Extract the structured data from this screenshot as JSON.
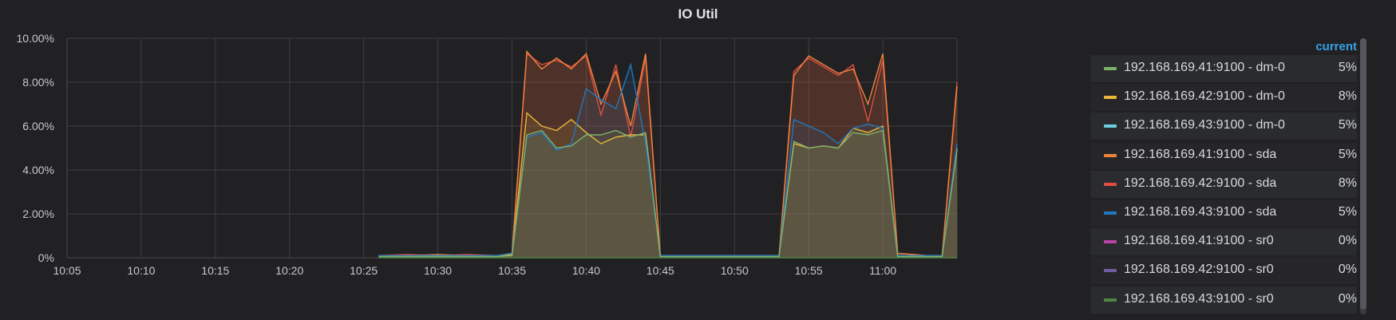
{
  "panel": {
    "title": "IO Util"
  },
  "legend": {
    "header": "current",
    "items": [
      {
        "name": "192.168.169.41:9100 - dm-0",
        "value": "5%",
        "color": "#7eb26d"
      },
      {
        "name": "192.168.169.42:9100 - dm-0",
        "value": "8%",
        "color": "#eab839"
      },
      {
        "name": "192.168.169.43:9100 - dm-0",
        "value": "5%",
        "color": "#6ed0e0"
      },
      {
        "name": "192.168.169.41:9100 - sda",
        "value": "5%",
        "color": "#ef843c"
      },
      {
        "name": "192.168.169.42:9100 - sda",
        "value": "8%",
        "color": "#e24d42"
      },
      {
        "name": "192.168.169.43:9100 - sda",
        "value": "5%",
        "color": "#1f78c1"
      },
      {
        "name": "192.168.169.41:9100 - sr0",
        "value": "0%",
        "color": "#ba43a9"
      },
      {
        "name": "192.168.169.42:9100 - sr0",
        "value": "0%",
        "color": "#705da0"
      },
      {
        "name": "192.168.169.43:9100 - sr0",
        "value": "0%",
        "color": "#508642"
      }
    ]
  },
  "chart_data": {
    "type": "area",
    "title": "IO Util",
    "ylim": [
      0,
      10
    ],
    "y_ticks": [
      "0%",
      "2.00%",
      "4.00%",
      "6.00%",
      "8.00%",
      "10.00%"
    ],
    "xlim": [
      "10:05",
      "11:05"
    ],
    "x_ticks": [
      "10:05",
      "10:10",
      "10:15",
      "10:20",
      "10:25",
      "10:30",
      "10:35",
      "10:40",
      "10:45",
      "10:50",
      "10:55",
      "11:00"
    ],
    "grid": true,
    "legend_placement": "right",
    "x": [
      "10:26",
      "10:28",
      "10:30",
      "10:32",
      "10:34",
      "10:35",
      "10:36",
      "10:37",
      "10:38",
      "10:39",
      "10:40",
      "10:41",
      "10:42",
      "10:43",
      "10:44",
      "10:45",
      "10:47",
      "10:49",
      "10:51",
      "10:53",
      "10:54",
      "10:55",
      "10:56",
      "10:57",
      "10:58",
      "10:59",
      "11:00",
      "11:01",
      "11:03",
      "11:04",
      "11:05"
    ],
    "series": [
      {
        "name": "192.168.169.42:9100 - sda",
        "color": "#e24d42",
        "values": [
          0.1,
          0.15,
          0.1,
          0.15,
          0.1,
          0.2,
          9.3,
          8.8,
          9.0,
          8.7,
          9.2,
          6.5,
          8.8,
          5.5,
          9.1,
          0.1,
          0.1,
          0.1,
          0.1,
          0.1,
          8.5,
          9.1,
          8.7,
          8.3,
          8.8,
          6.2,
          9.0,
          0.2,
          0.1,
          0.1,
          8.0
        ]
      },
      {
        "name": "192.168.169.41:9100 - sda",
        "color": "#ef843c",
        "values": [
          0.1,
          0.1,
          0.15,
          0.1,
          0.1,
          0.2,
          9.4,
          8.6,
          9.1,
          8.6,
          9.3,
          7.0,
          8.5,
          6.0,
          9.3,
          0.1,
          0.1,
          0.1,
          0.1,
          0.1,
          8.3,
          9.2,
          8.8,
          8.4,
          8.6,
          7.0,
          9.3,
          0.2,
          0.1,
          0.1,
          7.8
        ]
      },
      {
        "name": "192.168.169.42:9100 - dm-0",
        "color": "#eab839",
        "values": [
          0.1,
          0.1,
          0.1,
          0.1,
          0.1,
          0.15,
          6.6,
          6.0,
          5.8,
          6.3,
          5.7,
          5.2,
          5.5,
          5.6,
          5.6,
          0.1,
          0.1,
          0.1,
          0.1,
          0.1,
          5.2,
          5.0,
          5.1,
          5.0,
          5.9,
          5.7,
          6.0,
          0.1,
          0.1,
          0.1,
          5.0
        ]
      },
      {
        "name": "192.168.169.43:9100 - sda",
        "color": "#1f78c1",
        "values": [
          0.1,
          0.1,
          0.1,
          0.1,
          0.1,
          0.2,
          5.5,
          5.7,
          4.9,
          5.2,
          7.7,
          7.2,
          6.8,
          8.8,
          5.2,
          0.1,
          0.1,
          0.1,
          0.1,
          0.1,
          6.3,
          6.0,
          5.7,
          5.2,
          5.9,
          6.1,
          5.9,
          0.1,
          0.1,
          0.1,
          5.2
        ]
      },
      {
        "name": "192.168.169.41:9100 - dm-0",
        "color": "#7eb26d",
        "values": [
          0.05,
          0.05,
          0.05,
          0.05,
          0.05,
          0.1,
          5.6,
          5.8,
          5.0,
          5.1,
          5.6,
          5.6,
          5.8,
          5.5,
          5.7,
          0.05,
          0.05,
          0.05,
          0.05,
          0.05,
          5.3,
          5.0,
          5.1,
          5.0,
          5.7,
          5.6,
          5.8,
          0.05,
          0.05,
          0.05,
          4.9
        ]
      },
      {
        "name": "192.168.169.43:9100 - sr0",
        "color": "#508642",
        "values": [
          0,
          0,
          0,
          0,
          0,
          0,
          0,
          0,
          0,
          0,
          0,
          0,
          0,
          0,
          0,
          0,
          0,
          0,
          0,
          0,
          0,
          0,
          0,
          0,
          0,
          0,
          0,
          0,
          0,
          0,
          0
        ]
      }
    ]
  }
}
